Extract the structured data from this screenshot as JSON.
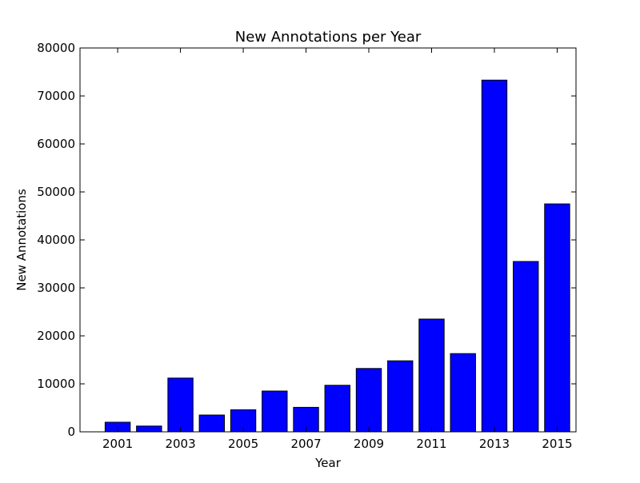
{
  "chart_data": {
    "type": "bar",
    "title": "New Annotations per Year",
    "xlabel": "Year",
    "ylabel": "New Annotations",
    "categories": [
      "2001",
      "2002",
      "2003",
      "2004",
      "2005",
      "2006",
      "2007",
      "2008",
      "2009",
      "2010",
      "2011",
      "2012",
      "2013",
      "2014",
      "2015"
    ],
    "values": [
      2000,
      1200,
      11200,
      3500,
      4600,
      8500,
      5100,
      9700,
      13200,
      14800,
      23500,
      16300,
      73300,
      35500,
      47500
    ],
    "xlim": [
      1999.8,
      2015.6
    ],
    "ylim": [
      0,
      80000
    ],
    "x_ticks": [
      "2001",
      "2003",
      "2005",
      "2007",
      "2009",
      "2011",
      "2013",
      "2015"
    ],
    "y_ticks": [
      "0",
      "10000",
      "20000",
      "30000",
      "40000",
      "50000",
      "60000",
      "70000",
      "80000"
    ],
    "bar_color": "#0000ff",
    "edge_color": "#000000",
    "grid": false,
    "legend": false
  }
}
